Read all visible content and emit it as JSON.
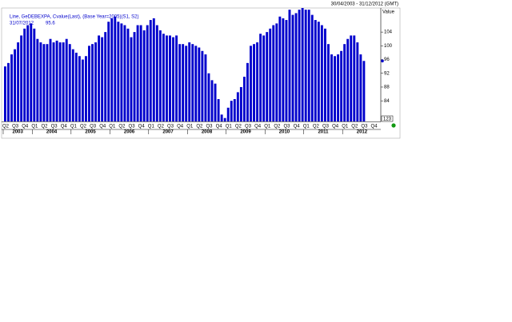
{
  "chart_data": {
    "type": "bar",
    "date_range": "30/04/2003 - 31/12/2012 (GMT)",
    "legend_text": "Line, GeDEBEXPA, Cvalue(Last), (Base Year=2005)(S1, S2)",
    "last_date": "31/07/2012",
    "y_axis_label": "Value",
    "corner_label": "123",
    "color": "#0000cc",
    "values": [
      94,
      95,
      97.5,
      99,
      101,
      103,
      105,
      106,
      106.5,
      105,
      102,
      101,
      100.5,
      100.5,
      102,
      101,
      101.5,
      101,
      101,
      102,
      100.5,
      99,
      98,
      97,
      96,
      97,
      100,
      100.5,
      101,
      103,
      102.5,
      104,
      107,
      108,
      108.5,
      107,
      106.5,
      106,
      105,
      102.5,
      104,
      106,
      106,
      104.5,
      106,
      107.5,
      108,
      106,
      104.5,
      103.5,
      103,
      103,
      102.5,
      103,
      100.5,
      100.5,
      100,
      101,
      100.5,
      100,
      99.5,
      98.5,
      97.5,
      92,
      90,
      89,
      84.5,
      80,
      79,
      82,
      84,
      84.5,
      86.5,
      88,
      91,
      95,
      100,
      100.5,
      101,
      103.5,
      103,
      104,
      105,
      106,
      106.5,
      108.5,
      108,
      107.5,
      110.5,
      109,
      109.5,
      110.5,
      111,
      110.5,
      110.5,
      109,
      107.5,
      107,
      106,
      105,
      100.5,
      97.5,
      97,
      97.5,
      98.5,
      100.5,
      102,
      103,
      103,
      101,
      97.5,
      95.6
    ],
    "quarters": [
      "Q2",
      "Q3",
      "Q4",
      "Q1",
      "Q2",
      "Q3",
      "Q4",
      "Q1",
      "Q2",
      "Q3",
      "Q4",
      "Q1",
      "Q2",
      "Q3",
      "Q4",
      "Q1",
      "Q2",
      "Q3",
      "Q4",
      "Q1",
      "Q2",
      "Q3",
      "Q4",
      "Q1",
      "Q2",
      "Q3",
      "Q4",
      "Q1",
      "Q2",
      "Q3",
      "Q4",
      "Q1",
      "Q2",
      "Q3",
      "Q4",
      "Q1",
      "Q2",
      "Q3",
      "Q4"
    ],
    "years": [
      "2003",
      "2004",
      "2005",
      "2006",
      "2007",
      "2008",
      "2009",
      "2010",
      "2011",
      "2012"
    ],
    "ylim": [
      78,
      111
    ],
    "yticks": [
      84,
      88,
      92,
      96,
      100,
      104
    ]
  }
}
